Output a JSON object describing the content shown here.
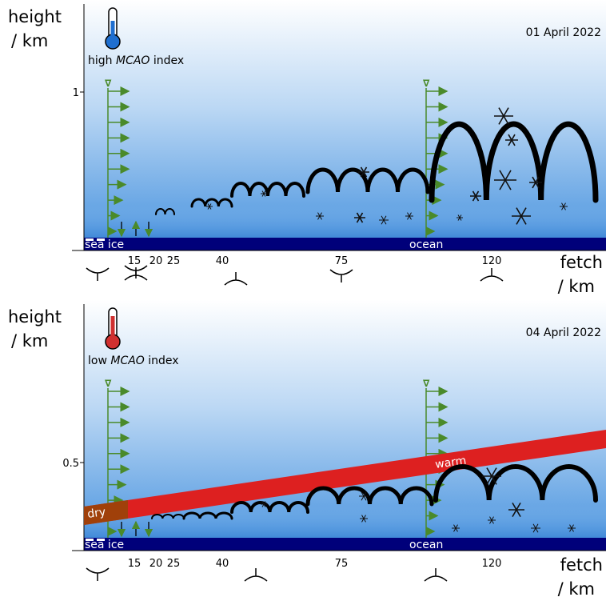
{
  "panels": [
    {
      "y_label": [
        "height",
        "/ km"
      ],
      "y_tick": "1",
      "date": "01 April 2022",
      "index_label": [
        "high ",
        "MCAO",
        " index"
      ],
      "surface": [
        "sea ice",
        "ocean"
      ],
      "fetch_ticks": [
        "15",
        "20",
        "25",
        "40",
        "75",
        "120"
      ],
      "x_label": [
        "fetch",
        "/ km"
      ]
    },
    {
      "y_label": [
        "height",
        "/ km"
      ],
      "y_tick": "0.5",
      "date": "04 April 2022",
      "index_label": [
        "low ",
        "MCAO",
        " index"
      ],
      "surface": [
        "sea ice",
        "ocean"
      ],
      "fetch_ticks": [
        "15",
        "20",
        "25",
        "40",
        "75",
        "120"
      ],
      "x_label": [
        "fetch",
        "/ km"
      ],
      "band_labels": [
        "dry",
        "warm"
      ]
    }
  ]
}
